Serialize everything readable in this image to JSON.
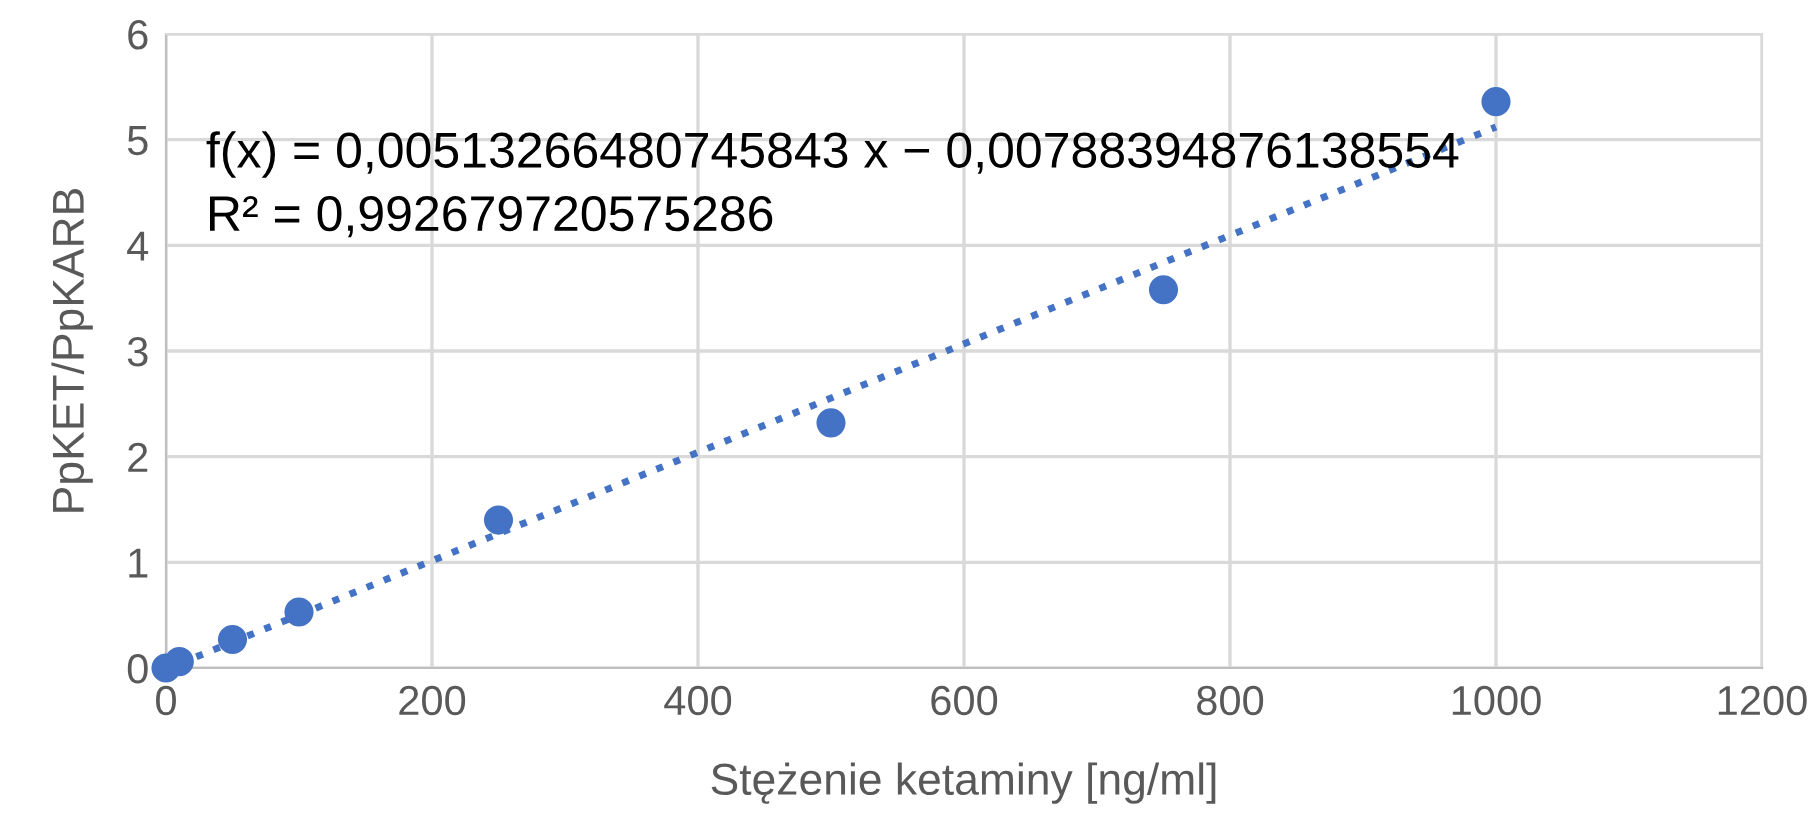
{
  "chart_data": {
    "type": "scatter",
    "xlabel": "Stężenie ketaminy [ng/ml]",
    "ylabel": "PpKET/PpKARB",
    "series": [
      {
        "color": "#4472c4",
        "marker": "circle",
        "x": [
          0,
          10,
          50,
          100,
          250,
          500,
          750,
          1000
        ],
        "values": [
          0.0,
          0.06,
          0.27,
          0.53,
          1.4,
          2.32,
          3.58,
          5.36
        ]
      },
      {
        "type": "line",
        "color": "#4472c4",
        "line_style": "dotted",
        "marker": "none",
        "x": [
          10,
          1000
        ],
        "values": [
          0.04,
          5.12
        ]
      }
    ],
    "annotations": [
      "f(x) = 0,00513266480745843 x − 0,00788394876138554",
      "R² = 0,992679720575286"
    ],
    "xlim": [
      0,
      1200
    ],
    "xticks": [
      0,
      200,
      400,
      600,
      800,
      1000,
      1200
    ],
    "ylim": [
      0,
      6
    ],
    "yticks": [
      0,
      1,
      2,
      3,
      4,
      5,
      6
    ],
    "grid": true,
    "legend": false
  }
}
